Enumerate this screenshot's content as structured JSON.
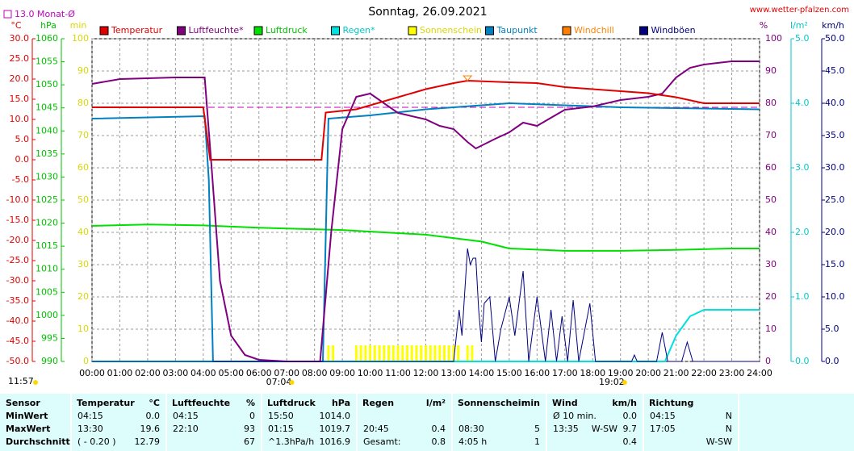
{
  "chart_data": {
    "type": "line",
    "title": "Sonntag, 26.09.2021",
    "source": "www.wetter-pfalzen.com",
    "reference": {
      "label": "13.0 Monat-Ø",
      "value": 13.0,
      "color": "#c000c0"
    },
    "y_label": "°C",
    "y2_label": "hPa",
    "y3_label": "min",
    "y4_label": "%",
    "y5_label": "l/m²",
    "y6_label": "km/h",
    "ylim": [
      -50,
      30
    ],
    "yticks": [
      {
        "value": 30,
        "label": "30.0"
      },
      {
        "value": 25,
        "label": "25.0"
      },
      {
        "value": 20,
        "label": "20.0"
      },
      {
        "value": 15,
        "label": "15.0"
      },
      {
        "value": 10,
        "label": "10.0"
      },
      {
        "value": 5,
        "label": "5.0"
      },
      {
        "value": 0,
        "label": "0.0"
      },
      {
        "value": -5,
        "label": "-5.0"
      },
      {
        "value": -10,
        "label": "-10.0"
      },
      {
        "value": -15,
        "label": "-15.0"
      },
      {
        "value": -20,
        "label": "-20.0"
      },
      {
        "value": -25,
        "label": "-25.0"
      },
      {
        "value": -30,
        "label": "-30.0"
      },
      {
        "value": -35,
        "label": "-35.0"
      },
      {
        "value": -40,
        "label": "-40.0"
      },
      {
        "value": -45,
        "label": "-45.0"
      },
      {
        "value": -50,
        "label": "-50.0"
      }
    ],
    "y2lim": [
      990,
      1060
    ],
    "y2ticks": [
      1060,
      1055,
      1050,
      1045,
      1040,
      1035,
      1030,
      1025,
      1020,
      1015,
      1010,
      1005,
      1000,
      995,
      990
    ],
    "y3lim": [
      0,
      100
    ],
    "y3ticks": [
      100,
      90,
      80,
      70,
      60,
      50,
      40,
      30,
      20,
      10,
      0
    ],
    "y4lim": [
      0,
      100
    ],
    "y4ticks": [
      100,
      90,
      80,
      70,
      60,
      50,
      40,
      30,
      20,
      10,
      0
    ],
    "y5lim": [
      0,
      5
    ],
    "y5ticks": [
      {
        "value": 5,
        "label": "5.0"
      },
      {
        "value": 4,
        "label": "4.0"
      },
      {
        "value": 3,
        "label": "3.0"
      },
      {
        "value": 2,
        "label": "2.0"
      },
      {
        "value": 1,
        "label": "1.0"
      },
      {
        "value": 0,
        "label": "0.0"
      }
    ],
    "y6lim": [
      0,
      50
    ],
    "y6ticks": [
      {
        "value": 50,
        "label": "50.0"
      },
      {
        "value": 45,
        "label": "45.0"
      },
      {
        "value": 40,
        "label": "40.0"
      },
      {
        "value": 35,
        "label": "35.0"
      },
      {
        "value": 30,
        "label": "30.0"
      },
      {
        "value": 25,
        "label": "25.0"
      },
      {
        "value": 20,
        "label": "20.0"
      },
      {
        "value": 15,
        "label": "15.0"
      },
      {
        "value": 10,
        "label": "10.0"
      },
      {
        "value": 5,
        "label": "5.0"
      },
      {
        "value": 0,
        "label": "0.0"
      }
    ],
    "xlim": [
      0,
      24
    ],
    "xticks": [
      {
        "value": 0,
        "label": "00:00"
      },
      {
        "value": 1,
        "label": "01:00"
      },
      {
        "value": 2,
        "label": "02:00"
      },
      {
        "value": 3,
        "label": "03:00"
      },
      {
        "value": 4,
        "label": "04:00"
      },
      {
        "value": 5,
        "label": "05:00"
      },
      {
        "value": 6,
        "label": "06:00"
      },
      {
        "value": 7,
        "label": "07:00"
      },
      {
        "value": 8,
        "label": "08:00"
      },
      {
        "value": 9,
        "label": "09:00"
      },
      {
        "value": 10,
        "label": "10:00"
      },
      {
        "value": 11,
        "label": "11:00"
      },
      {
        "value": 12,
        "label": "12:00"
      },
      {
        "value": 13,
        "label": "13:00"
      },
      {
        "value": 14,
        "label": "14:00"
      },
      {
        "value": 15,
        "label": "15:00"
      },
      {
        "value": 16,
        "label": "16:00"
      },
      {
        "value": 17,
        "label": "17:00"
      },
      {
        "value": 18,
        "label": "18:00"
      },
      {
        "value": 19,
        "label": "19:00"
      },
      {
        "value": 20,
        "label": "20:00"
      },
      {
        "value": 21,
        "label": "21:00"
      },
      {
        "value": 22,
        "label": "22:00"
      },
      {
        "value": 23,
        "label": "23:00"
      },
      {
        "value": 24,
        "label": "24:00"
      }
    ],
    "grid": true,
    "sun": {
      "current": "11:57",
      "sunrise": {
        "value": 7.067,
        "label": "07:04"
      },
      "sunset": {
        "value": 19.033,
        "label": "19:02"
      }
    },
    "series": [
      {
        "name": "Temperatur",
        "color": "#e00000",
        "axis": "y",
        "x": [
          0,
          4,
          4.25,
          8.25,
          8.4,
          9.5,
          10,
          11,
          12,
          13,
          13.5,
          15,
          16,
          17,
          18,
          19,
          20,
          21,
          22,
          23,
          24
        ],
        "values": [
          13.0,
          13.0,
          0.0,
          0.0,
          11.7,
          12.5,
          13.5,
          15.5,
          17.5,
          19.0,
          19.6,
          19.2,
          19.0,
          18.0,
          17.5,
          17.0,
          16.5,
          15.5,
          14.0,
          14.0,
          14.0
        ]
      },
      {
        "name": "Luftfeuchte*",
        "color": "#800080",
        "axis": "y4",
        "x": [
          0,
          1,
          3,
          4.05,
          4.3,
          4.6,
          5,
          5.5,
          6,
          7,
          8.2,
          8.6,
          9,
          9.5,
          10,
          10.5,
          11,
          12,
          12.5,
          13,
          13.5,
          13.8,
          14.5,
          15,
          15.5,
          16,
          17,
          18,
          19,
          20,
          20.5,
          21,
          21.5,
          22,
          23,
          24
        ],
        "values": [
          86,
          87.5,
          88,
          88,
          60,
          25,
          8,
          2,
          0.5,
          0,
          0,
          40,
          72,
          82,
          83,
          80,
          77,
          75,
          73,
          72,
          68,
          66,
          69,
          71,
          74,
          73,
          78,
          79,
          81,
          82,
          83,
          88,
          91,
          92,
          93,
          93
        ]
      },
      {
        "name": "Luftdruck",
        "color": "#00e000",
        "axis": "y2",
        "x": [
          0,
          2,
          4,
          6,
          9,
          12,
          14,
          15,
          17,
          19,
          21,
          23,
          24
        ],
        "values": [
          1019.4,
          1019.7,
          1019.5,
          1019.0,
          1018.5,
          1017.5,
          1016.0,
          1014.5,
          1014.0,
          1014.0,
          1014.2,
          1014.5,
          1014.5
        ]
      },
      {
        "name": "Regen*",
        "color": "#00e0e0",
        "axis": "y5",
        "x": [
          0,
          20.6,
          21,
          21.5,
          22,
          24
        ],
        "values": [
          0,
          0,
          0.4,
          0.7,
          0.8,
          0.8
        ]
      },
      {
        "name": "Sonnenschein",
        "color": "#ffff00",
        "axis": "y3",
        "kind": "bar",
        "x": [
          8.5,
          8.667,
          9.5,
          9.667,
          9.833,
          10,
          10.167,
          10.333,
          10.5,
          10.667,
          10.833,
          11,
          11.167,
          11.333,
          11.5,
          11.667,
          11.833,
          12,
          12.167,
          12.333,
          12.5,
          12.667,
          12.833,
          13,
          13.167,
          13.5,
          13.667
        ],
        "values": [
          5,
          5,
          5,
          5,
          5,
          5,
          5,
          5,
          5,
          5,
          5,
          5,
          5,
          5,
          5,
          5,
          5,
          5,
          5,
          5,
          5,
          5,
          5,
          5,
          5,
          5,
          5
        ]
      },
      {
        "name": "Taupunkt",
        "color": "#0080c0",
        "axis": "y",
        "x": [
          0,
          4.05,
          4.2,
          4.35,
          8.3,
          8.5,
          10,
          12,
          14,
          15,
          17,
          19,
          21,
          24
        ],
        "values": [
          10.2,
          10.8,
          -5,
          -50,
          -50,
          10.2,
          11.0,
          12.5,
          13.5,
          14.0,
          13.5,
          13.0,
          12.8,
          12.5
        ]
      },
      {
        "name": "Windchill",
        "color": "#ff8000",
        "axis": "y"
      },
      {
        "name": "Windböen",
        "color": "#000080",
        "axis": "y6",
        "x": [
          0,
          13.0,
          13.2,
          13.3,
          13.5,
          13.6,
          13.7,
          13.8,
          13.9,
          14.0,
          14.1,
          14.3,
          14.5,
          14.7,
          15.0,
          15.2,
          15.5,
          15.7,
          16,
          16.3,
          16.5,
          16.7,
          16.9,
          17.1,
          17.3,
          17.5,
          17.9,
          18.1,
          19.4,
          19.5,
          19.6,
          20.3,
          20.5,
          20.7,
          21.2,
          21.4,
          21.6,
          24
        ],
        "values": [
          0,
          0,
          8,
          4,
          17.5,
          15,
          16,
          16,
          8,
          3,
          9,
          10,
          0,
          5,
          10,
          4,
          14,
          0,
          10,
          0,
          8,
          0,
          7,
          0,
          9.5,
          0,
          9,
          0,
          0,
          1,
          0,
          0,
          4.5,
          0,
          0,
          3,
          0,
          0
        ]
      }
    ]
  },
  "table": {
    "columns": [
      {
        "label": "Sensor"
      },
      {
        "label": "Temperatur",
        "unit": "°C"
      },
      {
        "label": "Luftfeuchte",
        "unit": "%"
      },
      {
        "label": "Luftdruck",
        "unit": "hPa"
      },
      {
        "label": "Regen",
        "unit": "l/m²"
      },
      {
        "label": "Sonnenschein",
        "unit": "min"
      },
      {
        "label": "Wind",
        "unit": "km/h"
      },
      {
        "label": "Richtung"
      }
    ],
    "rows": [
      {
        "label": "MinWert",
        "cells": [
          [
            "04:15",
            "0.0"
          ],
          [
            "04:15",
            "0"
          ],
          [
            "15:50",
            "1014.0"
          ],
          [],
          [],
          [
            "Ø 10 min.",
            "0.0"
          ],
          [
            "04:15",
            "N"
          ]
        ]
      },
      {
        "label": "MaxWert",
        "cells": [
          [
            "13:30",
            "19.6"
          ],
          [
            "22:10",
            "93"
          ],
          [
            "01:15",
            "1019.7"
          ],
          [
            "20:45",
            "0.4"
          ],
          [
            "08:30",
            "5"
          ],
          [
            "13:35",
            "W-SW",
            "9.7"
          ],
          [
            "17:05",
            "N"
          ]
        ]
      },
      {
        "label": "Durchschnitt",
        "cells": [
          [
            "( - 0.20 )",
            "12.79"
          ],
          [
            "67"
          ],
          [
            "^1.3hPa/h",
            "1016.9"
          ],
          [
            "Gesamt:",
            "0.8"
          ],
          [
            "4:05 h",
            "1"
          ],
          [
            "0.4"
          ],
          [
            "W-SW"
          ]
        ]
      }
    ]
  }
}
